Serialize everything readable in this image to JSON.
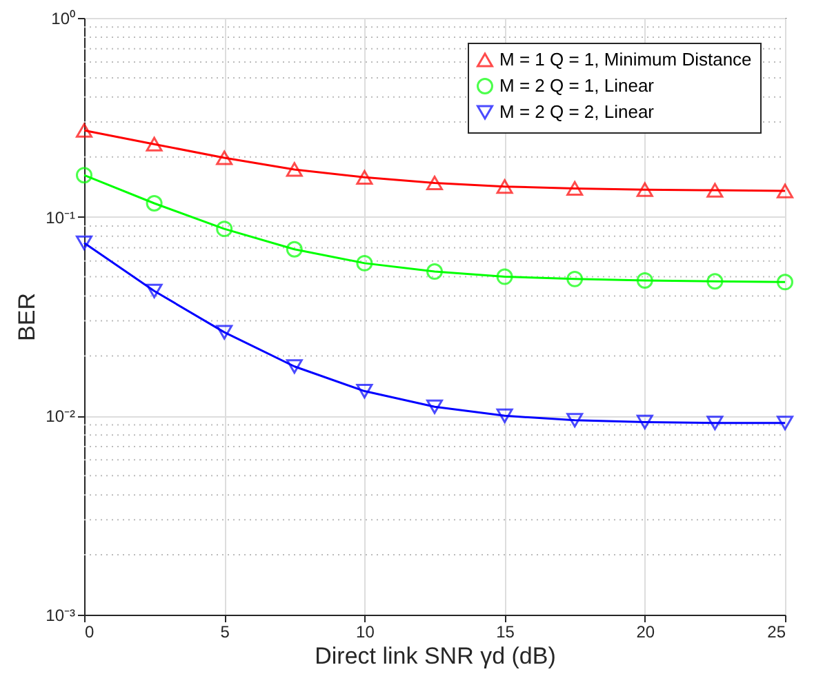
{
  "chart_data": {
    "type": "line",
    "x": [
      0,
      2.5,
      5,
      7.5,
      10,
      12.5,
      15,
      17.5,
      20,
      22.5,
      25
    ],
    "series": [
      {
        "name": "M = 1 Q = 1, Minimum Distance",
        "color": "#ff0000",
        "marker": "triangle",
        "values": [
          0.272,
          0.232,
          0.198,
          0.173,
          0.158,
          0.148,
          0.142,
          0.139,
          0.137,
          0.136,
          0.135
        ]
      },
      {
        "name": "M = 2 Q = 1, Linear",
        "color": "#00ff00",
        "marker": "circle",
        "values": [
          0.162,
          0.117,
          0.087,
          0.0687,
          0.0585,
          0.0531,
          0.05,
          0.0487,
          0.0479,
          0.0474,
          0.047
        ]
      },
      {
        "name": "M = 2 Q = 2, Linear",
        "color": "#0000ff",
        "marker": "triangle-down",
        "values": [
          0.074,
          0.0424,
          0.0263,
          0.0177,
          0.0133,
          0.0111,
          0.01,
          0.0095,
          0.0093,
          0.0092,
          0.0092
        ]
      }
    ],
    "xlabel": "Direct link SNR γd (dB)",
    "ylabel": "BER",
    "xlim": [
      0,
      25
    ],
    "xticks": [
      0,
      5,
      10,
      15,
      20,
      25
    ],
    "ylim": [
      0.001,
      1
    ],
    "yticks": [
      {
        "value": 0.001,
        "label": "10⁻³"
      },
      {
        "value": 0.01,
        "label": "10⁻²"
      },
      {
        "value": 0.1,
        "label": "10⁻¹"
      },
      {
        "value": 1,
        "label": "10⁰"
      }
    ],
    "log": "y",
    "grid": true,
    "legend": "top right",
    "line_style": "solid"
  }
}
